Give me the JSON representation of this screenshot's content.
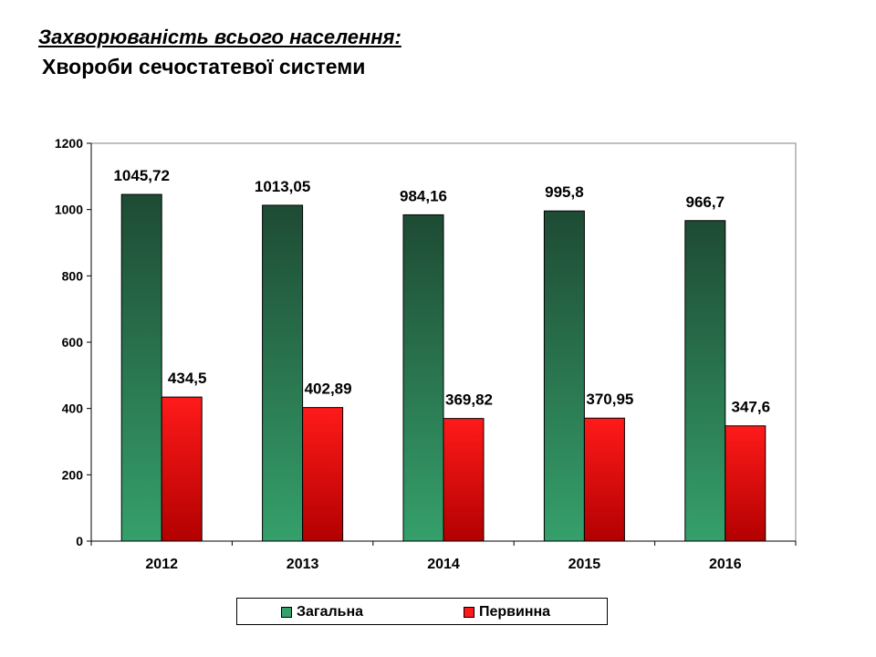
{
  "header": {
    "title": "Захворюваність всього населення:",
    "subtitle": "Хвороби сечостатевої системи"
  },
  "colors": {
    "series1_top": "#1e4b34",
    "series1_bottom": "#35a06b",
    "series2_top": "#ff1a1a",
    "series2_bottom": "#b30000"
  },
  "chart_data": {
    "type": "bar",
    "categories": [
      "2012",
      "2013",
      "2014",
      "2015",
      "2016"
    ],
    "series": [
      {
        "name": "Загальна",
        "values": [
          1045.72,
          1013.05,
          984.16,
          995.8,
          966.7
        ],
        "labels": [
          "1045,72",
          "1013,05",
          "984,16",
          "995,8",
          "966,7"
        ]
      },
      {
        "name": "Первинна",
        "values": [
          434.5,
          402.89,
          369.82,
          370.95,
          347.6
        ],
        "labels": [
          "434,5",
          "402,89",
          "369,82",
          "370,95",
          "347,6"
        ]
      }
    ],
    "ylim": [
      0,
      1200
    ],
    "yticks": [
      "0",
      "200",
      "400",
      "600",
      "800",
      "1000",
      "1200"
    ],
    "grid": false,
    "legend_position": "bottom"
  }
}
